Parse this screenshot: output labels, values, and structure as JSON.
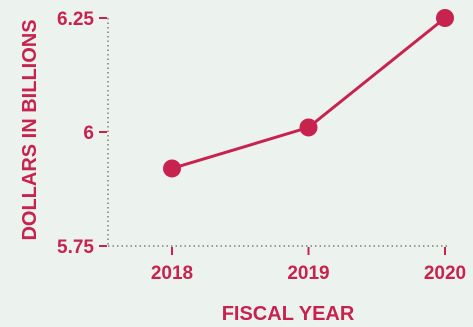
{
  "chart_data": {
    "type": "line",
    "x": [
      2018,
      2019,
      2020
    ],
    "series": [
      {
        "values": [
          5.92,
          6.01,
          6.25
        ]
      }
    ],
    "xlabel": "FISCAL YEAR",
    "ylabel": "DOLLARS IN BILLIONS",
    "x_tick_labels": [
      "2018",
      "2019",
      "2020"
    ],
    "y_ticks": [
      5.75,
      6,
      6.25
    ],
    "y_tick_labels": [
      "5.75",
      "6",
      "6.25"
    ],
    "ylim": [
      5.75,
      6.25
    ],
    "grid": false,
    "legend": "none",
    "colors": {
      "background": "#ECF3EF",
      "accent": "#C8234F",
      "axis": "#9a9a9a"
    }
  }
}
